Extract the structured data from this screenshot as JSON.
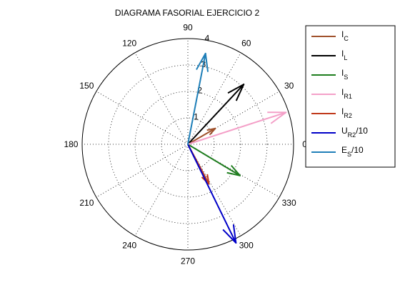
{
  "chart_data": {
    "type": "polar",
    "title": "DIAGRAMA FASORIAL EJERCICIO 2",
    "rlim": [
      0,
      4
    ],
    "radial_ticks": [
      "1",
      "2",
      "3",
      "4"
    ],
    "angle_ticks": [
      "0",
      "30",
      "60",
      "90",
      "120",
      "150",
      "180",
      "210",
      "240",
      "270",
      "300",
      "330"
    ],
    "grid": true,
    "legend_position": "top-right, outside",
    "series": [
      {
        "name_main": "I",
        "name_sub": "C",
        "name_suffix": "",
        "color": "#a0522d",
        "magnitude": 1.2,
        "angle_deg": 30
      },
      {
        "name_main": "I",
        "name_sub": "L",
        "name_suffix": "",
        "color": "#000000",
        "magnitude": 3.1,
        "angle_deg": 47
      },
      {
        "name_main": "I",
        "name_sub": "S",
        "name_suffix": "",
        "color": "#1e7d1e",
        "magnitude": 2.3,
        "angle_deg": -31
      },
      {
        "name_main": "I",
        "name_sub": "R1",
        "name_suffix": "",
        "color": "#f4a0c8",
        "magnitude": 3.9,
        "angle_deg": 18
      },
      {
        "name_main": "I",
        "name_sub": "R2",
        "name_suffix": "",
        "color": "#c0391b",
        "magnitude": 1.7,
        "angle_deg": -62
      },
      {
        "name_main": "U",
        "name_sub": "R2",
        "name_suffix": "/10",
        "color": "#0000c8",
        "magnitude": 4.15,
        "angle_deg": -64
      },
      {
        "name_main": "E",
        "name_sub": "S",
        "name_suffix": "/10",
        "color": "#1f7fb8",
        "magnitude": 3.5,
        "angle_deg": 79
      }
    ]
  }
}
